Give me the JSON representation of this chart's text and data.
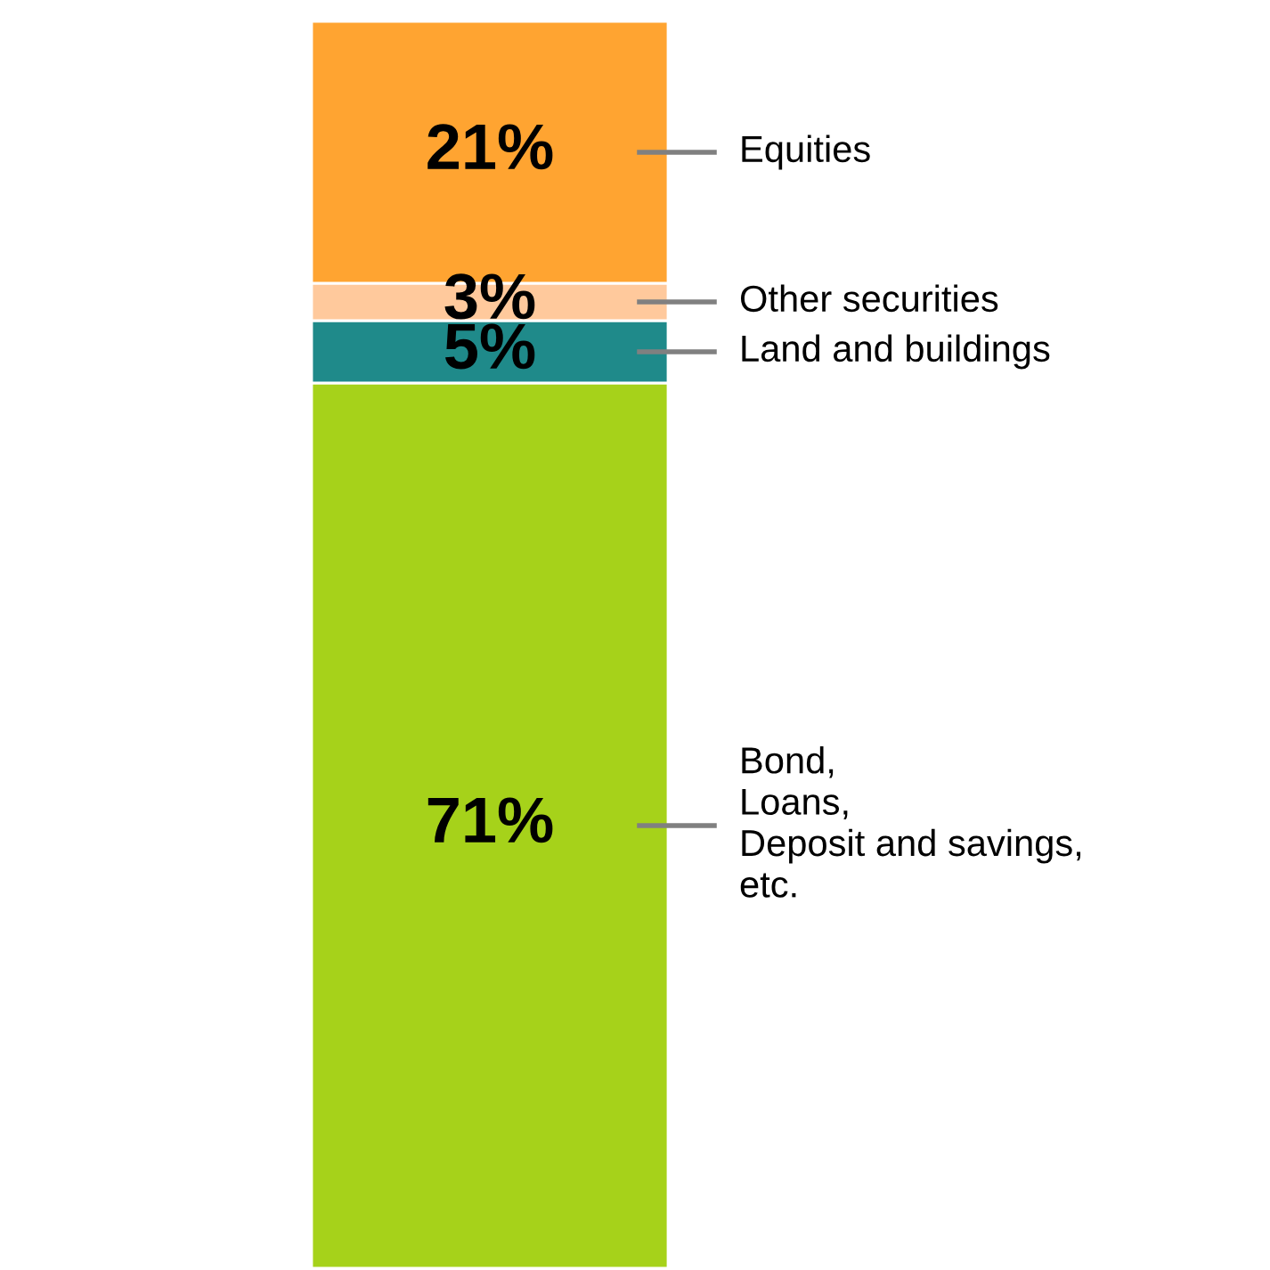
{
  "chart_data": {
    "type": "bar",
    "stacked": true,
    "categories": [
      null
    ],
    "series": [
      {
        "name": "Bond,\nLoans,\nDeposit and savings,\netc.",
        "color": "#a6d21a",
        "values": [
          71
        ],
        "value_labels": [
          "71%"
        ]
      },
      {
        "name": "Land and buildings",
        "color": "#1f8a8a",
        "values": [
          5
        ],
        "value_labels": [
          "5%"
        ]
      },
      {
        "name": "Other securities",
        "color": "#ffc99c",
        "values": [
          3
        ],
        "value_labels": [
          "3%"
        ]
      },
      {
        "name": "Equities",
        "color": "#ffa431",
        "values": [
          21
        ],
        "value_labels": [
          "21%"
        ]
      }
    ],
    "legend": false
  }
}
